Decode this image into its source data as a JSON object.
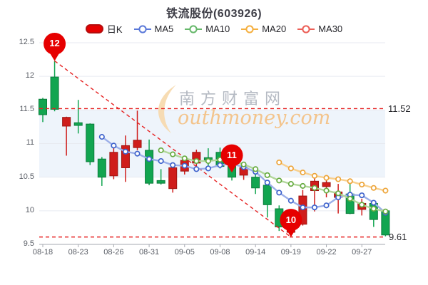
{
  "header": {
    "title": "铁流股份(603926)"
  },
  "legend": {
    "items": [
      {
        "label": "日K",
        "type": "candles",
        "color": "#e60000",
        "border": "#b50d0d"
      },
      {
        "label": "MA5",
        "type": "line",
        "color": "#5b79d9"
      },
      {
        "label": "MA10",
        "type": "line",
        "color": "#67b86b"
      },
      {
        "label": "MA20",
        "type": "line",
        "color": "#f5b041"
      },
      {
        "label": "MA30",
        "type": "line",
        "color": "#ec5f57"
      }
    ]
  },
  "axes": {
    "y_ticks": [
      {
        "label": "12.5",
        "value": 12.5
      },
      {
        "label": "12",
        "value": 12.0
      },
      {
        "label": "11.5",
        "value": 11.5
      },
      {
        "label": "11",
        "value": 11.0
      },
      {
        "label": "10.5",
        "value": 10.5
      },
      {
        "label": "10",
        "value": 10.0
      },
      {
        "label": "9.5",
        "value": 9.5
      }
    ],
    "x_ticks": [
      {
        "label": "08-18",
        "index": 0
      },
      {
        "label": "08-23",
        "index": 3
      },
      {
        "label": "08-26",
        "index": 6
      },
      {
        "label": "08-31",
        "index": 9
      },
      {
        "label": "09-05",
        "index": 12
      },
      {
        "label": "09-08",
        "index": 15
      },
      {
        "label": "09-14",
        "index": 18
      },
      {
        "label": "09-19",
        "index": 21
      },
      {
        "label": "09-22",
        "index": 24
      },
      {
        "label": "09-27",
        "index": 27
      }
    ]
  },
  "annotations": {
    "high_line": {
      "label": "11.52",
      "value": 11.52
    },
    "low_line": {
      "label": "9.61",
      "value": 9.61
    },
    "trendline": {
      "from_index": 1,
      "from_value": 12.23,
      "to_index": 21,
      "to_value": 9.61
    }
  },
  "markers": [
    {
      "label": "12",
      "index": 1,
      "value": 12.23
    },
    {
      "label": "11",
      "index": 16,
      "value": 10.57
    },
    {
      "label": "10",
      "index": 21,
      "value": 9.61
    }
  ],
  "watermark": {
    "cn": "南方财富网",
    "en": "outhmoney.com"
  },
  "chart_data": {
    "type": "candlestick",
    "title": "铁流股份(603926)",
    "ylim": [
      9.5,
      12.5
    ],
    "grid": true,
    "legend_position": "top",
    "dates": [
      "08-18",
      "08-19",
      "08-22",
      "08-23",
      "08-24",
      "08-25",
      "08-26",
      "08-29",
      "08-30",
      "08-31",
      "09-01",
      "09-02",
      "09-05",
      "09-06",
      "09-07",
      "09-08",
      "09-09",
      "09-13",
      "09-14",
      "09-15",
      "09-16",
      "09-19",
      "09-20",
      "09-21",
      "09-22",
      "09-23",
      "09-26",
      "09-27",
      "09-28",
      "09-29"
    ],
    "candles": [
      {
        "date": "08-18",
        "dir": "down",
        "open": 11.66,
        "close": 11.43,
        "high": 11.68,
        "low": 11.32
      },
      {
        "date": "08-19",
        "dir": "down",
        "open": 11.99,
        "close": 11.51,
        "high": 12.23,
        "low": 11.48
      },
      {
        "date": "08-22",
        "dir": "up",
        "open": 11.26,
        "close": 11.39,
        "high": 11.4,
        "low": 10.82
      },
      {
        "date": "08-23",
        "dir": "down",
        "open": 11.31,
        "close": 11.27,
        "high": 11.65,
        "low": 11.15
      },
      {
        "date": "08-24",
        "dir": "down",
        "open": 11.29,
        "close": 10.73,
        "high": 11.3,
        "low": 10.68
      },
      {
        "date": "08-25",
        "dir": "down",
        "open": 10.77,
        "close": 10.5,
        "high": 10.8,
        "low": 10.37
      },
      {
        "date": "08-26",
        "dir": "up",
        "open": 10.52,
        "close": 10.87,
        "high": 10.95,
        "low": 10.47
      },
      {
        "date": "08-29",
        "dir": "up",
        "open": 10.64,
        "close": 10.97,
        "high": 11.12,
        "low": 10.43
      },
      {
        "date": "08-30",
        "dir": "up",
        "open": 10.94,
        "close": 11.05,
        "high": 11.49,
        "low": 10.9
      },
      {
        "date": "08-31",
        "dir": "down",
        "open": 10.9,
        "close": 10.41,
        "high": 11.06,
        "low": 10.38
      },
      {
        "date": "09-01",
        "dir": "down",
        "open": 10.45,
        "close": 10.41,
        "high": 10.62,
        "low": 10.39
      },
      {
        "date": "09-02",
        "dir": "up",
        "open": 10.33,
        "close": 10.64,
        "high": 10.72,
        "low": 10.27
      },
      {
        "date": "09-05",
        "dir": "up",
        "open": 10.59,
        "close": 10.75,
        "high": 10.78,
        "low": 10.54
      },
      {
        "date": "09-06",
        "dir": "up",
        "open": 10.71,
        "close": 10.87,
        "high": 10.91,
        "low": 10.66
      },
      {
        "date": "09-07",
        "dir": "down",
        "open": 10.79,
        "close": 10.75,
        "high": 10.93,
        "low": 10.62
      },
      {
        "date": "09-08",
        "dir": "down",
        "open": 10.87,
        "close": 10.66,
        "high": 10.94,
        "low": 10.63
      },
      {
        "date": "09-09",
        "dir": "down",
        "open": 10.66,
        "close": 10.5,
        "high": 10.72,
        "low": 10.45
      },
      {
        "date": "09-13",
        "dir": "up",
        "open": 10.53,
        "close": 10.64,
        "high": 10.68,
        "low": 10.46
      },
      {
        "date": "09-14",
        "dir": "down",
        "open": 10.5,
        "close": 10.34,
        "high": 10.59,
        "low": 10.25
      },
      {
        "date": "09-15",
        "dir": "down",
        "open": 10.38,
        "close": 10.09,
        "high": 10.43,
        "low": 9.9
      },
      {
        "date": "09-16",
        "dir": "down",
        "open": 10.03,
        "close": 9.76,
        "high": 10.08,
        "low": 9.7
      },
      {
        "date": "09-19",
        "dir": "up",
        "open": 9.68,
        "close": 9.9,
        "high": 9.98,
        "low": 9.61
      },
      {
        "date": "09-20",
        "dir": "up",
        "open": 9.8,
        "close": 10.22,
        "high": 10.31,
        "low": 9.78
      },
      {
        "date": "09-21",
        "dir": "up",
        "open": 10.3,
        "close": 10.44,
        "high": 10.51,
        "low": 9.99
      },
      {
        "date": "09-22",
        "dir": "up",
        "open": 10.36,
        "close": 10.42,
        "high": 10.46,
        "low": 10.2
      },
      {
        "date": "09-23",
        "dir": "up",
        "open": 10.2,
        "close": 10.28,
        "high": 10.4,
        "low": 9.96
      },
      {
        "date": "09-26",
        "dir": "down",
        "open": 10.25,
        "close": 9.96,
        "high": 10.44,
        "low": 9.95
      },
      {
        "date": "09-27",
        "dir": "up",
        "open": 10.02,
        "close": 10.11,
        "high": 10.18,
        "low": 9.93
      },
      {
        "date": "09-28",
        "dir": "down",
        "open": 10.11,
        "close": 9.87,
        "high": 10.15,
        "low": 9.76
      },
      {
        "date": "09-29",
        "dir": "down",
        "open": 10.0,
        "close": 9.64,
        "high": 10.02,
        "low": 9.62
      }
    ],
    "series": [
      {
        "name": "MA5",
        "values": [
          null,
          null,
          null,
          null,
          null,
          11.1,
          10.97,
          10.88,
          10.85,
          10.77,
          10.74,
          10.68,
          10.67,
          10.62,
          10.63,
          10.68,
          10.7,
          10.65,
          10.58,
          10.42,
          10.27,
          10.15,
          10.05,
          10.05,
          10.08,
          10.2,
          10.24,
          10.23,
          10.12,
          9.97
        ]
      },
      {
        "name": "MA10",
        "values": [
          null,
          null,
          null,
          null,
          null,
          null,
          null,
          null,
          null,
          null,
          10.9,
          10.84,
          10.78,
          10.74,
          10.74,
          10.76,
          10.74,
          10.69,
          10.62,
          10.53,
          10.45,
          10.4,
          10.37,
          10.34,
          10.3,
          10.26,
          10.18,
          10.09,
          10.03,
          9.99
        ]
      },
      {
        "name": "MA20",
        "values": [
          null,
          null,
          null,
          null,
          null,
          null,
          null,
          null,
          null,
          null,
          null,
          null,
          null,
          null,
          null,
          null,
          null,
          null,
          null,
          null,
          10.72,
          10.63,
          10.57,
          10.52,
          10.49,
          10.47,
          10.44,
          10.39,
          10.34,
          10.3
        ]
      },
      {
        "name": "MA30",
        "values": []
      }
    ],
    "colors": {
      "up": "#cf1d1b",
      "up_border": "#9e1410",
      "down": "#12a550",
      "down_border": "#0c7c3c",
      "ma5_line": "#9baee8",
      "ma5_marker": "#3f63cc",
      "ma10_line": "#b2d79b",
      "ma10_marker": "#67ab41",
      "ma20_line": "#f8d08e",
      "ma20_marker": "#eda53a",
      "dash": "#e62222",
      "balloon": "#e60000",
      "grid": "#e7eaf0",
      "band": "#eef4fb",
      "axis": "#a6aab2"
    }
  }
}
